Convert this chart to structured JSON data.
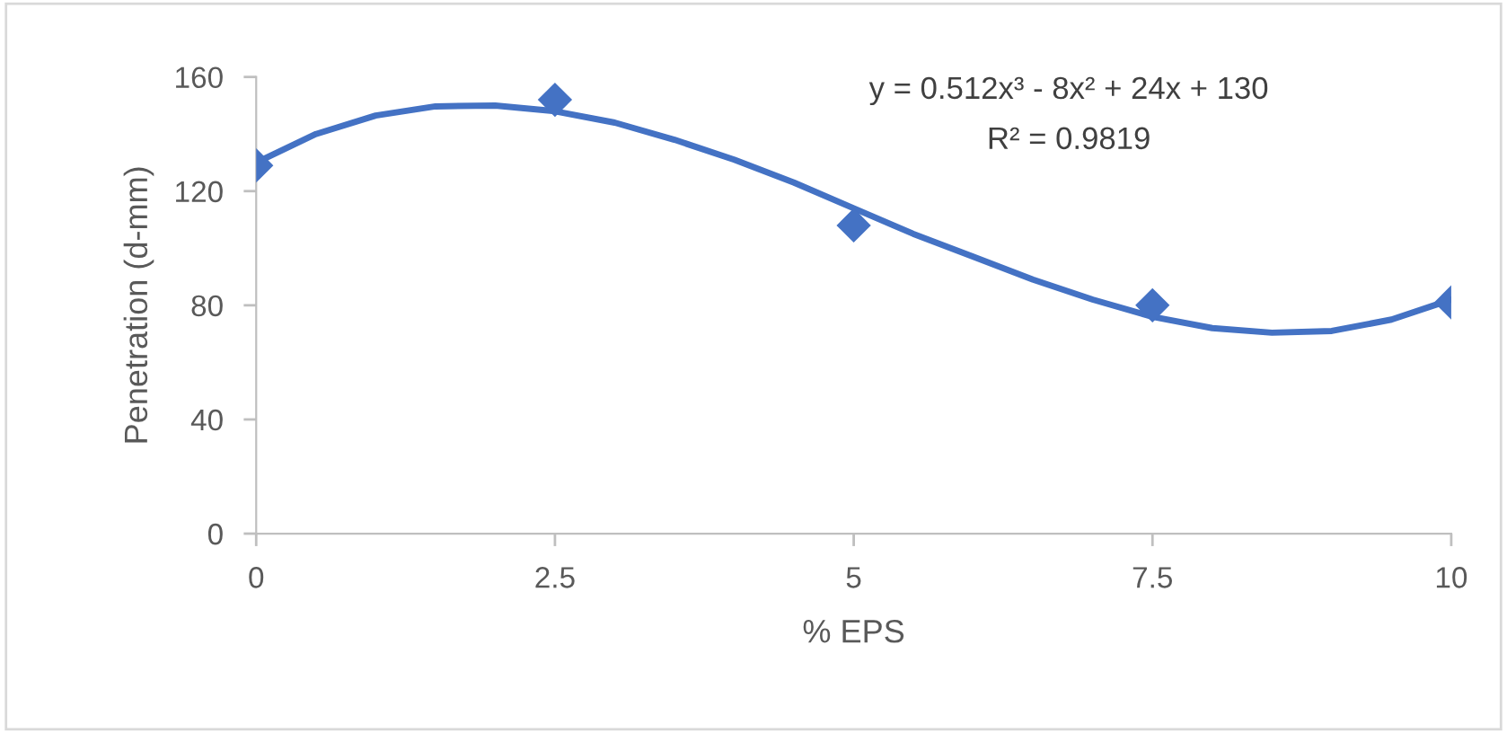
{
  "chart_data": {
    "type": "scatter",
    "xlabel": "% EPS",
    "ylabel": "Penetration (d-mm)",
    "xlim": [
      0,
      10
    ],
    "xticks": [
      0,
      2.5,
      5,
      7.5,
      10
    ],
    "ylim": [
      0,
      160
    ],
    "yticks": [
      0,
      40,
      80,
      120,
      160
    ],
    "grid": false,
    "legend": false,
    "marker": "diamond",
    "series": [
      {
        "color": "#4472c4",
        "x": [
          0,
          2.5,
          5,
          7.5,
          10
        ],
        "values": [
          129,
          152,
          108,
          80,
          81
        ]
      },
      {
        "type": "line",
        "color": "#4472c4",
        "line_style": "solid",
        "marker": "none",
        "x": [
          0,
          0.5,
          1,
          1.5,
          2,
          2.5,
          3,
          3.5,
          4,
          4.5,
          5,
          5.5,
          6,
          6.5,
          7,
          7.5,
          8,
          8.5,
          9,
          9.5,
          10
        ],
        "values": [
          130,
          140,
          146.5,
          149.7,
          150,
          148,
          144,
          138,
          131,
          123,
          114,
          105,
          97,
          89,
          82,
          76,
          72,
          70.4,
          71,
          75,
          82
        ]
      }
    ],
    "annotations": [
      "y = 0.512x³ - 8x² + 24x + 130",
      "R² = 0.9819"
    ]
  }
}
